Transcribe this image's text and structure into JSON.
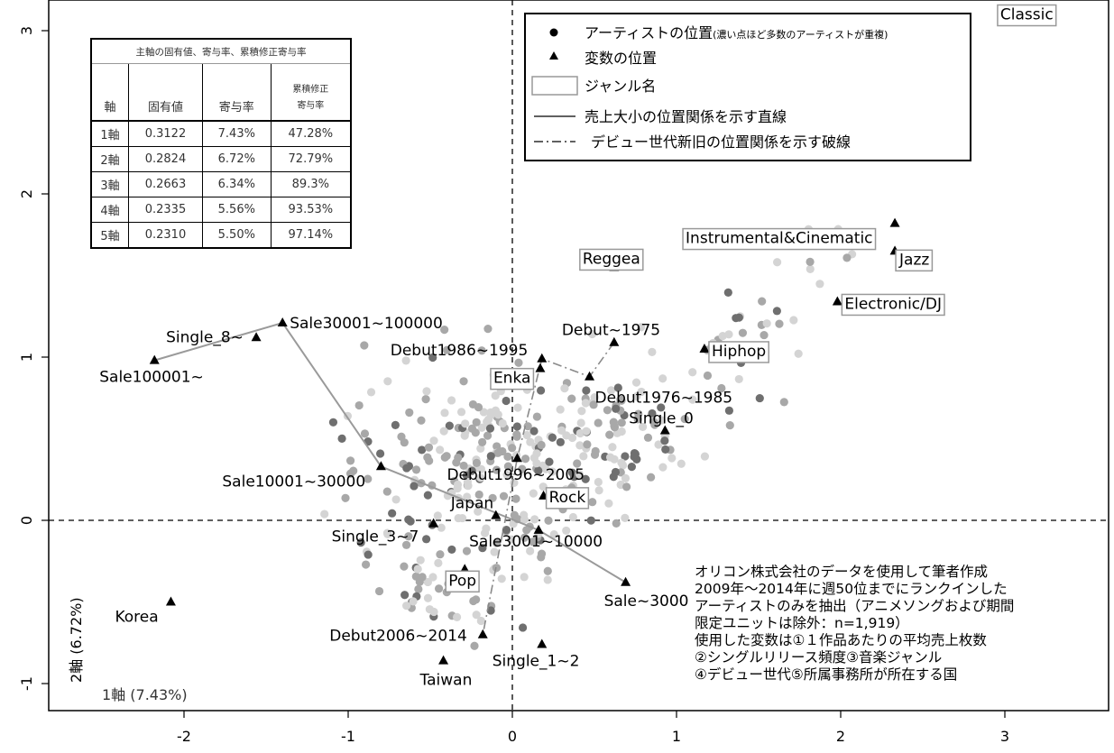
{
  "chart_data": {
    "type": "scatter",
    "x_ticks": [
      "-2",
      "-1",
      "0",
      "1",
      "2",
      "3"
    ],
    "y_ticks": [
      "-1",
      "0",
      "1",
      "2",
      "3"
    ],
    "xlim": [
      -2.7,
      3.6
    ],
    "ylim": [
      -1.15,
      3.15
    ],
    "xlabel": "1軸 (7.43%)",
    "ylabel": "2軸 (6.72%)",
    "variables": [
      {
        "label": "Classic",
        "x": 3.06,
        "y": 3.08,
        "boxed": true
      },
      {
        "label": "Instrumental&Cinematic",
        "x": 2.33,
        "y": 1.82,
        "boxed": true
      },
      {
        "label": "Jazz",
        "x": 2.33,
        "y": 1.65,
        "boxed": true
      },
      {
        "label": "Reggea",
        "x": 0.62,
        "y": 1.55,
        "boxed": true
      },
      {
        "label": "Electronic/DJ",
        "x": 1.98,
        "y": 1.34,
        "boxed": true
      },
      {
        "label": "Hiphop",
        "x": 1.17,
        "y": 1.05,
        "boxed": true
      },
      {
        "label": "Enka",
        "x": 0.17,
        "y": 0.93,
        "boxed": true
      },
      {
        "label": "Rock",
        "x": 0.19,
        "y": 0.15,
        "boxed": true
      },
      {
        "label": "Pop",
        "x": -0.29,
        "y": -0.3,
        "boxed": true
      },
      {
        "label": "Debut~1975",
        "x": 0.62,
        "y": 1.09,
        "boxed": false
      },
      {
        "label": "Debut1986~1995",
        "x": 0.18,
        "y": 0.99,
        "boxed": false
      },
      {
        "label": "Debut1976~1985",
        "x": 0.47,
        "y": 0.88,
        "boxed": false
      },
      {
        "label": "Debut1996~2005",
        "x": 0.03,
        "y": 0.38,
        "boxed": false
      },
      {
        "label": "Debut2006~2014",
        "x": -0.18,
        "y": -0.7,
        "boxed": false
      },
      {
        "label": "Single_0",
        "x": 0.93,
        "y": 0.55,
        "boxed": false
      },
      {
        "label": "Single_8~",
        "x": -1.56,
        "y": 1.12,
        "boxed": false
      },
      {
        "label": "Single_3~7",
        "x": -0.48,
        "y": -0.02,
        "boxed": false
      },
      {
        "label": "Single_1~2",
        "x": 0.18,
        "y": -0.76,
        "boxed": false
      },
      {
        "label": "Sale30001~100000",
        "x": -1.4,
        "y": 1.21,
        "boxed": false
      },
      {
        "label": "Sale100001~",
        "x": -2.18,
        "y": 0.98,
        "boxed": false
      },
      {
        "label": "Sale10001~30000",
        "x": -0.8,
        "y": 0.33,
        "boxed": false
      },
      {
        "label": "Sale3001~10000",
        "x": 0.16,
        "y": -0.06,
        "boxed": false
      },
      {
        "label": "Sale~3000",
        "x": 0.69,
        "y": -0.38,
        "boxed": false
      },
      {
        "label": "Japan",
        "x": -0.1,
        "y": 0.03,
        "boxed": false
      },
      {
        "label": "Korea",
        "x": -2.08,
        "y": -0.5,
        "boxed": false
      },
      {
        "label": "Taiwan",
        "x": -0.42,
        "y": -0.86,
        "boxed": false
      }
    ],
    "sales_line_order": [
      "Sale100001~",
      "Sale30001~100000",
      "Sale10001~30000",
      "Sale3001~10000",
      "Sale~3000"
    ],
    "debut_line_order": [
      "Debut~1975",
      "Debut1976~1985",
      "Debut1986~1995",
      "Debut1996~2005",
      "Debut2006~2014"
    ],
    "colors": {
      "dot_light": "#d4d4d4",
      "dot_mid": "#a8a8a8",
      "dot_dark": "#6f6f6f",
      "sales_line": "#9a9a9a",
      "debut_line": "#8a8a8a"
    }
  },
  "legend": {
    "artist": "アーティストの位置",
    "artist_note": "(濃い点ほど多数のアーティストが重複)",
    "variable": "変数の位置",
    "genre": "ジャンル名",
    "sales_line": "売上大小の位置関係を示す直線",
    "debut_line": "デビュー世代新旧の位置関係を示す破線"
  },
  "table": {
    "title": "主軸の固有値、寄与率、累積修正寄与率",
    "headers": [
      "軸",
      "固有値",
      "寄与率",
      "累積修正",
      "寄与率"
    ],
    "rows": [
      [
        "1軸",
        "0.3122",
        "7.43%",
        "47.28%"
      ],
      [
        "2軸",
        "0.2824",
        "6.72%",
        "72.79%"
      ],
      [
        "3軸",
        "0.2663",
        "6.34%",
        "89.3%"
      ],
      [
        "4軸",
        "0.2335",
        "5.56%",
        "93.53%"
      ],
      [
        "5軸",
        "0.2310",
        "5.50%",
        "97.14%"
      ]
    ]
  },
  "note": [
    "オリコン株式会社のデータを使用して筆者作成",
    "2009年～2014年に週50位までにランクインした",
    "アーティストのみを抽出（アニメソングおよび期間",
    "限定ユニットは除外：n=1,919）",
    "使用した変数は①１作品あたりの平均売上枚数",
    "②シングルリリース頻度③音楽ジャンル",
    "④デビュー世代⑤所属事務所が所在する国"
  ]
}
